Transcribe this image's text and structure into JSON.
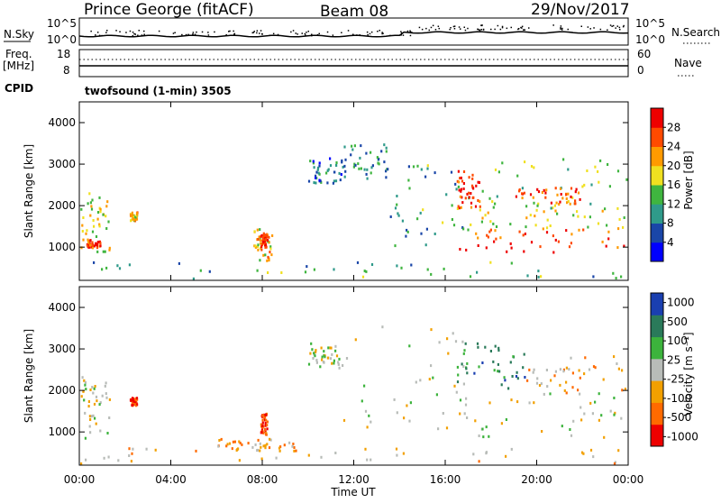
{
  "header": {
    "station": "Prince George (fitACF)",
    "beam": "Beam 08",
    "date": "29/Nov/2017"
  },
  "top_panel": {
    "left_label": "N.Sky",
    "left_ticks": [
      "10^5",
      "10^0"
    ],
    "right_ticks": [
      "10^5",
      "10^0"
    ],
    "right_label": "N.Search"
  },
  "freq_panel": {
    "left_label_1": "Freq.",
    "left_label_2": "[MHz]",
    "left_ticks": [
      "18",
      "8"
    ],
    "right_ticks": [
      "60",
      "0"
    ],
    "right_label": "Nave"
  },
  "cpid": {
    "label": "CPID",
    "text": "twofsound (1-min) 3505"
  },
  "chart_data": [
    {
      "type": "heatmap",
      "name": "power",
      "ylabel": "Slant Range [km]",
      "yticks": [
        "1000",
        "2000",
        "3000",
        "4000"
      ],
      "ylim": [
        200,
        4500
      ],
      "xlim": [
        0,
        24
      ],
      "colorbar_label": "Power [dB]",
      "colorbar_ticks": [
        "4",
        "8",
        "12",
        "16",
        "20",
        "24",
        "28"
      ],
      "colors": [
        "#0000ff",
        "#1a46a8",
        "#2f9a8a",
        "#3fb53f",
        "#f0e020",
        "#ff9a00",
        "#ff4a00",
        "#ee0000"
      ],
      "regions": [
        {
          "t": [
            0.0,
            1.3
          ],
          "r": [
            800,
            2300
          ],
          "level": 0.55
        },
        {
          "t": [
            0.3,
            0.9
          ],
          "r": [
            950,
            1150
          ],
          "level": 0.85
        },
        {
          "t": [
            2.2,
            2.5
          ],
          "r": [
            1600,
            1800
          ],
          "level": 0.6
        },
        {
          "t": [
            7.6,
            8.4
          ],
          "r": [
            600,
            1400
          ],
          "level": 0.6
        },
        {
          "t": [
            7.9,
            8.2
          ],
          "r": [
            900,
            1300
          ],
          "level": 0.9
        },
        {
          "t": [
            10.0,
            11.5
          ],
          "r": [
            2500,
            3100
          ],
          "level": 0.25
        },
        {
          "t": [
            11.5,
            13.5
          ],
          "r": [
            2600,
            3500
          ],
          "level": 0.3
        },
        {
          "t": [
            13.5,
            17.0
          ],
          "r": [
            1000,
            3000
          ],
          "level": 0.35
        },
        {
          "t": [
            16.5,
            24.0
          ],
          "r": [
            800,
            1400
          ],
          "level": 0.85
        },
        {
          "t": [
            16.5,
            24.0
          ],
          "r": [
            1400,
            1900
          ],
          "level": 0.55
        },
        {
          "t": [
            16.5,
            17.5
          ],
          "r": [
            1900,
            2800
          ],
          "level": 0.85
        },
        {
          "t": [
            17.5,
            24.0
          ],
          "r": [
            1900,
            3100
          ],
          "level": 0.45
        },
        {
          "t": [
            19.0,
            22.0
          ],
          "r": [
            2000,
            2400
          ],
          "level": 0.8
        },
        {
          "t": [
            0.0,
            24.0
          ],
          "r": [
            200,
            600
          ],
          "level": 0.35
        }
      ]
    },
    {
      "type": "heatmap",
      "name": "velocity",
      "ylabel": "Slant Range [km]",
      "yticks": [
        "1000",
        "2000",
        "3000",
        "4000"
      ],
      "ylim": [
        200,
        4500
      ],
      "xlabel": "Time UT",
      "xticks": [
        "00:00",
        "04:00",
        "08:00",
        "12:00",
        "16:00",
        "20:00",
        "00:00"
      ],
      "xlim": [
        0,
        24
      ],
      "colorbar_label": "Velocity [m s⁻¹]",
      "colorbar_ticks": [
        "1000",
        "500",
        "100",
        "25",
        "-25",
        "-100",
        "-500",
        "-1000"
      ],
      "colors": [
        "#1a3fb0",
        "#2a7a5a",
        "#3cb33c",
        "#b8bcb8",
        "#f2a000",
        "#ff6a00",
        "#ee0000"
      ],
      "regions": [
        {
          "t": [
            0.0,
            1.3
          ],
          "r": [
            800,
            2300
          ],
          "level": 0.5
        },
        {
          "t": [
            2.2,
            2.5
          ],
          "r": [
            1600,
            1800
          ],
          "level": 0.9
        },
        {
          "t": [
            6.0,
            9.5
          ],
          "r": [
            500,
            800
          ],
          "level": 0.65
        },
        {
          "t": [
            7.9,
            8.2
          ],
          "r": [
            900,
            1400
          ],
          "level": 0.85
        },
        {
          "t": [
            10.0,
            11.5
          ],
          "r": [
            2500,
            3100
          ],
          "level": 0.5
        },
        {
          "t": [
            11.5,
            17.0
          ],
          "r": [
            1000,
            3500
          ],
          "level": 0.5
        },
        {
          "t": [
            16.5,
            24.0
          ],
          "r": [
            800,
            1900
          ],
          "level": 0.5
        },
        {
          "t": [
            16.5,
            19.5
          ],
          "r": [
            2000,
            3100
          ],
          "level": 0.2
        },
        {
          "t": [
            19.5,
            24.0
          ],
          "r": [
            1900,
            2800
          ],
          "level": 0.65
        },
        {
          "t": [
            0.0,
            24.0
          ],
          "r": [
            200,
            600
          ],
          "level": 0.6
        }
      ]
    }
  ]
}
